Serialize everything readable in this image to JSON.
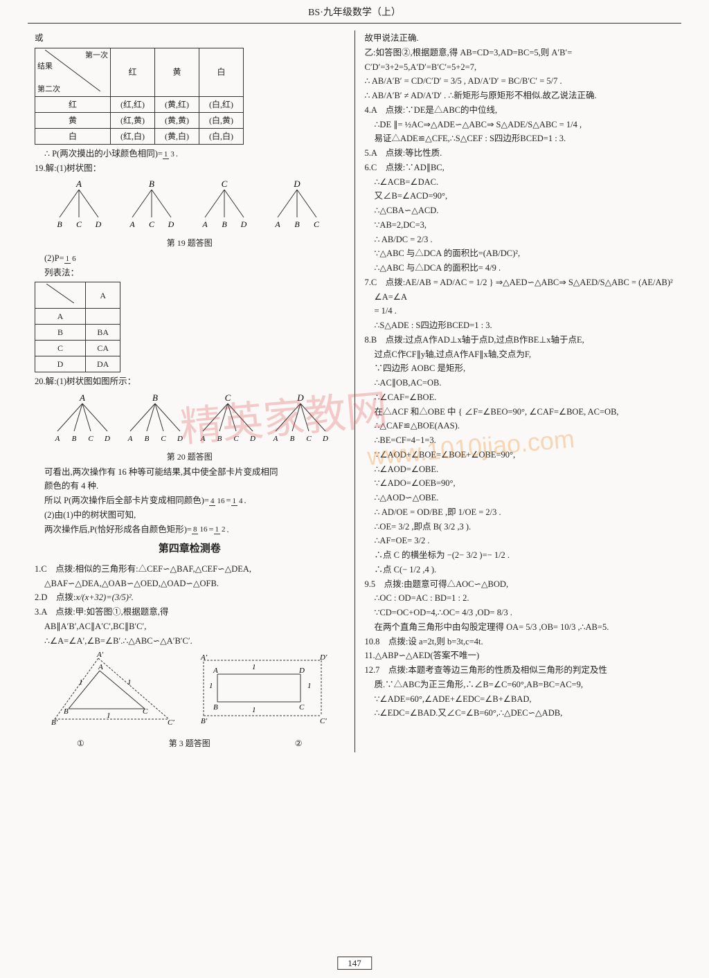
{
  "header": "BS·九年级数学（上）",
  "page_num": "147",
  "left": {
    "huo": "或",
    "tbl1": {
      "diag_a": "第一次",
      "diag_b": "结果",
      "diag_c": "第二次",
      "cols": [
        "红",
        "黄",
        "白"
      ],
      "rows": [
        "红",
        "黄",
        "白"
      ],
      "cells": [
        [
          "(红,红)",
          "(黄,红)",
          "(白,红)"
        ],
        [
          "(红,黄)",
          "(黄,黄)",
          "(白,黄)"
        ],
        [
          "(红,白)",
          "(黄,白)",
          "(白,白)"
        ]
      ]
    },
    "p_same": "∴ P(两次摸出的小球颜色相同)=",
    "frac_1_3": {
      "n": "1",
      "d": "3"
    },
    "q19_a": "19.解:(1)树状图：",
    "q19_fig": "第 19 题答图",
    "q19_roots": [
      "A",
      "B",
      "C",
      "D"
    ],
    "q19_leaves": [
      [
        "B",
        "C",
        "D"
      ],
      [
        "A",
        "C",
        "D"
      ],
      [
        "A",
        "B",
        "D"
      ],
      [
        "A",
        "B",
        "C"
      ]
    ],
    "q19_b": "(2)P=",
    "frac_1_6": {
      "n": "1",
      "d": "6"
    },
    "list_method": "列表法：",
    "tbl2": {
      "head": "A",
      "rows": [
        "A",
        "B",
        "C",
        "D"
      ],
      "vals": [
        "",
        "BA",
        "CA",
        "DA"
      ]
    },
    "q20_a": "20.解:(1)树状图如图所示：",
    "q20_fig": "第 20 题答图",
    "q20_roots": [
      "A",
      "B",
      "C",
      "D"
    ],
    "q20_leaves": [
      "A",
      "B",
      "C",
      "D"
    ],
    "q20_line1": "可看出,两次操作有 16 种等可能结果,其中使全部卡片变成相同",
    "q20_line1b": "颜色的有 4 种.",
    "q20_line2": "所以 P(两次操作后全部卡片变成相同颜色)=",
    "frac_4_16": {
      "n": "4",
      "d": "16"
    },
    "eq_1_4": {
      "n": "1",
      "d": "4"
    },
    "q20_line3": "(2)由(1)中的树状图可知,",
    "q20_line4": "两次操作后,P(恰好形成各自颜色矩形)=",
    "frac_8_16": {
      "n": "8",
      "d": "16"
    },
    "eq_1_2": {
      "n": "1",
      "d": "2"
    },
    "chapter4": "第四章检测卷",
    "a1": "1.C　点拨:相似的三角形有:△CEF∽△BAF,△CEF∽△DEA,",
    "a1b": "△BAF∽△DEA,△OAB∽△OED,△OAD∽△OFB.",
    "a2": "2.D　点拨:",
    "a2_math": "x/(x+32)=(3/5)².",
    "a3": "3.A　点拨:甲:如答图①,根据题意,得",
    "a3b": "AB∥A′B′,AC∥A′C′,BC∥B′C′,",
    "a3c": "∴∠A=∠A′,∠B=∠B′.∴△ABC∽△A′B′C′.",
    "a3_fig": "第 3 题答图",
    "fig_lbl1": "①",
    "fig_lbl2": "②"
  },
  "right": {
    "r1": "故甲说法正确.",
    "r2": "乙:如答图②,根据题意,得 AB=CD=3,AD=BC=5,则 A′B′=",
    "r3": "C′D′=3+2=5,A′D′=B′C′=5+2=7,",
    "r4": "∴ AB/A′B′ = CD/C′D′ = 3/5 , AD/A′D′ = BC/B′C′ = 5/7 .",
    "r5": "∴ AB/A′B′ ≠ AD/A′D′ . ∴新矩形与原矩形不相似.故乙说法正确.",
    "r6": "4.A　点拨:∵DE是△ABC的中位线,",
    "r7": "∴DE ∥= ½AC⇒△ADE∽△ABC⇒ S△ADE/S△ABC = 1/4 ,",
    "r8": "易证△ADE≌△CFE,∴S△CEF : S四边形BCED=1 : 3.",
    "r9": "5.A　点拨:等比性质.",
    "r10": "6.C　点拨:∵AD∥BC,",
    "r11": "∴∠ACB=∠DAC.",
    "r12": "又∠B=∠ACD=90°,",
    "r13": "∴△CBA∽△ACD.",
    "r14": "∵AB=2,DC=3,",
    "r15": "∴ AB/DC = 2/3 .",
    "r16": "∵△ABC 与△DCA 的面积比=(AB/DC)²,",
    "r17": "∴△ABC 与△DCA 的面积比= 4/9 .",
    "r18a": "7.C　点拨:",
    "r18b": "AE/AB = AD/AC = 1/2 } ⇒△AED∽△ABC⇒ S△AED/S△ABC = (AE/AB)²",
    "r18b2": "∠A=∠A",
    "r19": "= 1/4 .",
    "r20": "∴S△ADE : S四边形BCED=1 : 3.",
    "r21": "8.B　点拨:过点A作AD⊥x轴于点D,过点B作BE⊥x轴于点E,",
    "r22": "过点C作CF∥y轴,过点A作AF∥x轴,交点为F,",
    "r23": "∵四边形 AOBC 是矩形,",
    "r24": "∴AC∥OB,AC=OB.",
    "r25": "∴∠CAF=∠BOE.",
    "r26": "在△ACF 和△OBE 中 { ∠F=∠BEO=90°, ∠CAF=∠BOE, AC=OB,",
    "r27": "∴△CAF≌△BOE(AAS).",
    "r28": "∴BE=CF=4−1=3.",
    "r29": "∵∠AOD+∠BOE=∠BOE+∠OBE=90°,",
    "r30": "∴∠AOD=∠OBE.",
    "r31": "∵∠ADO=∠OEB=90°,",
    "r32": "∴△AOD∽△OBE.",
    "r33": "∴ AD/OE = OD/BE ,即 1/OE = 2/3 .",
    "r34": "∴OE= 3/2 ,即点 B( 3/2 ,3 ).",
    "r35": "∴AF=OE= 3/2 .",
    "r36": "∴点 C 的横坐标为 −(2− 3/2 )=− 1/2 .",
    "r37": "∴点 C(− 1/2 ,4 ).",
    "r38": "9.5　点拨:由题意可得△AOC∽△BOD,",
    "r39": "∴OC : OD=AC : BD=1 : 2.",
    "r40": "∵CD=OC+OD=4,∴OC= 4/3 ,OD= 8/3 .",
    "r41": "在两个直角三角形中由勾股定理得 OA= 5/3 ,OB= 10/3 ,∴AB=5.",
    "r42": "10.8　点拨:设 a=2t,则 b=3t,c=4t.",
    "r43": "11.△ABP∽△AED(答案不唯一)",
    "r44": "12.7　点拨:本题考查等边三角形的性质及相似三角形的判定及性",
    "r45": "质.∵△ABC为正三角形,∴∠B=∠C=60°,AB=BC=AC=9,",
    "r46": "∵∠ADE=60°,∠ADE+∠EDC=∠B+∠BAD,",
    "r47": "∴∠EDC=∠BAD.又∠C=∠B=60°,∴△DEC∽△ADB,"
  }
}
